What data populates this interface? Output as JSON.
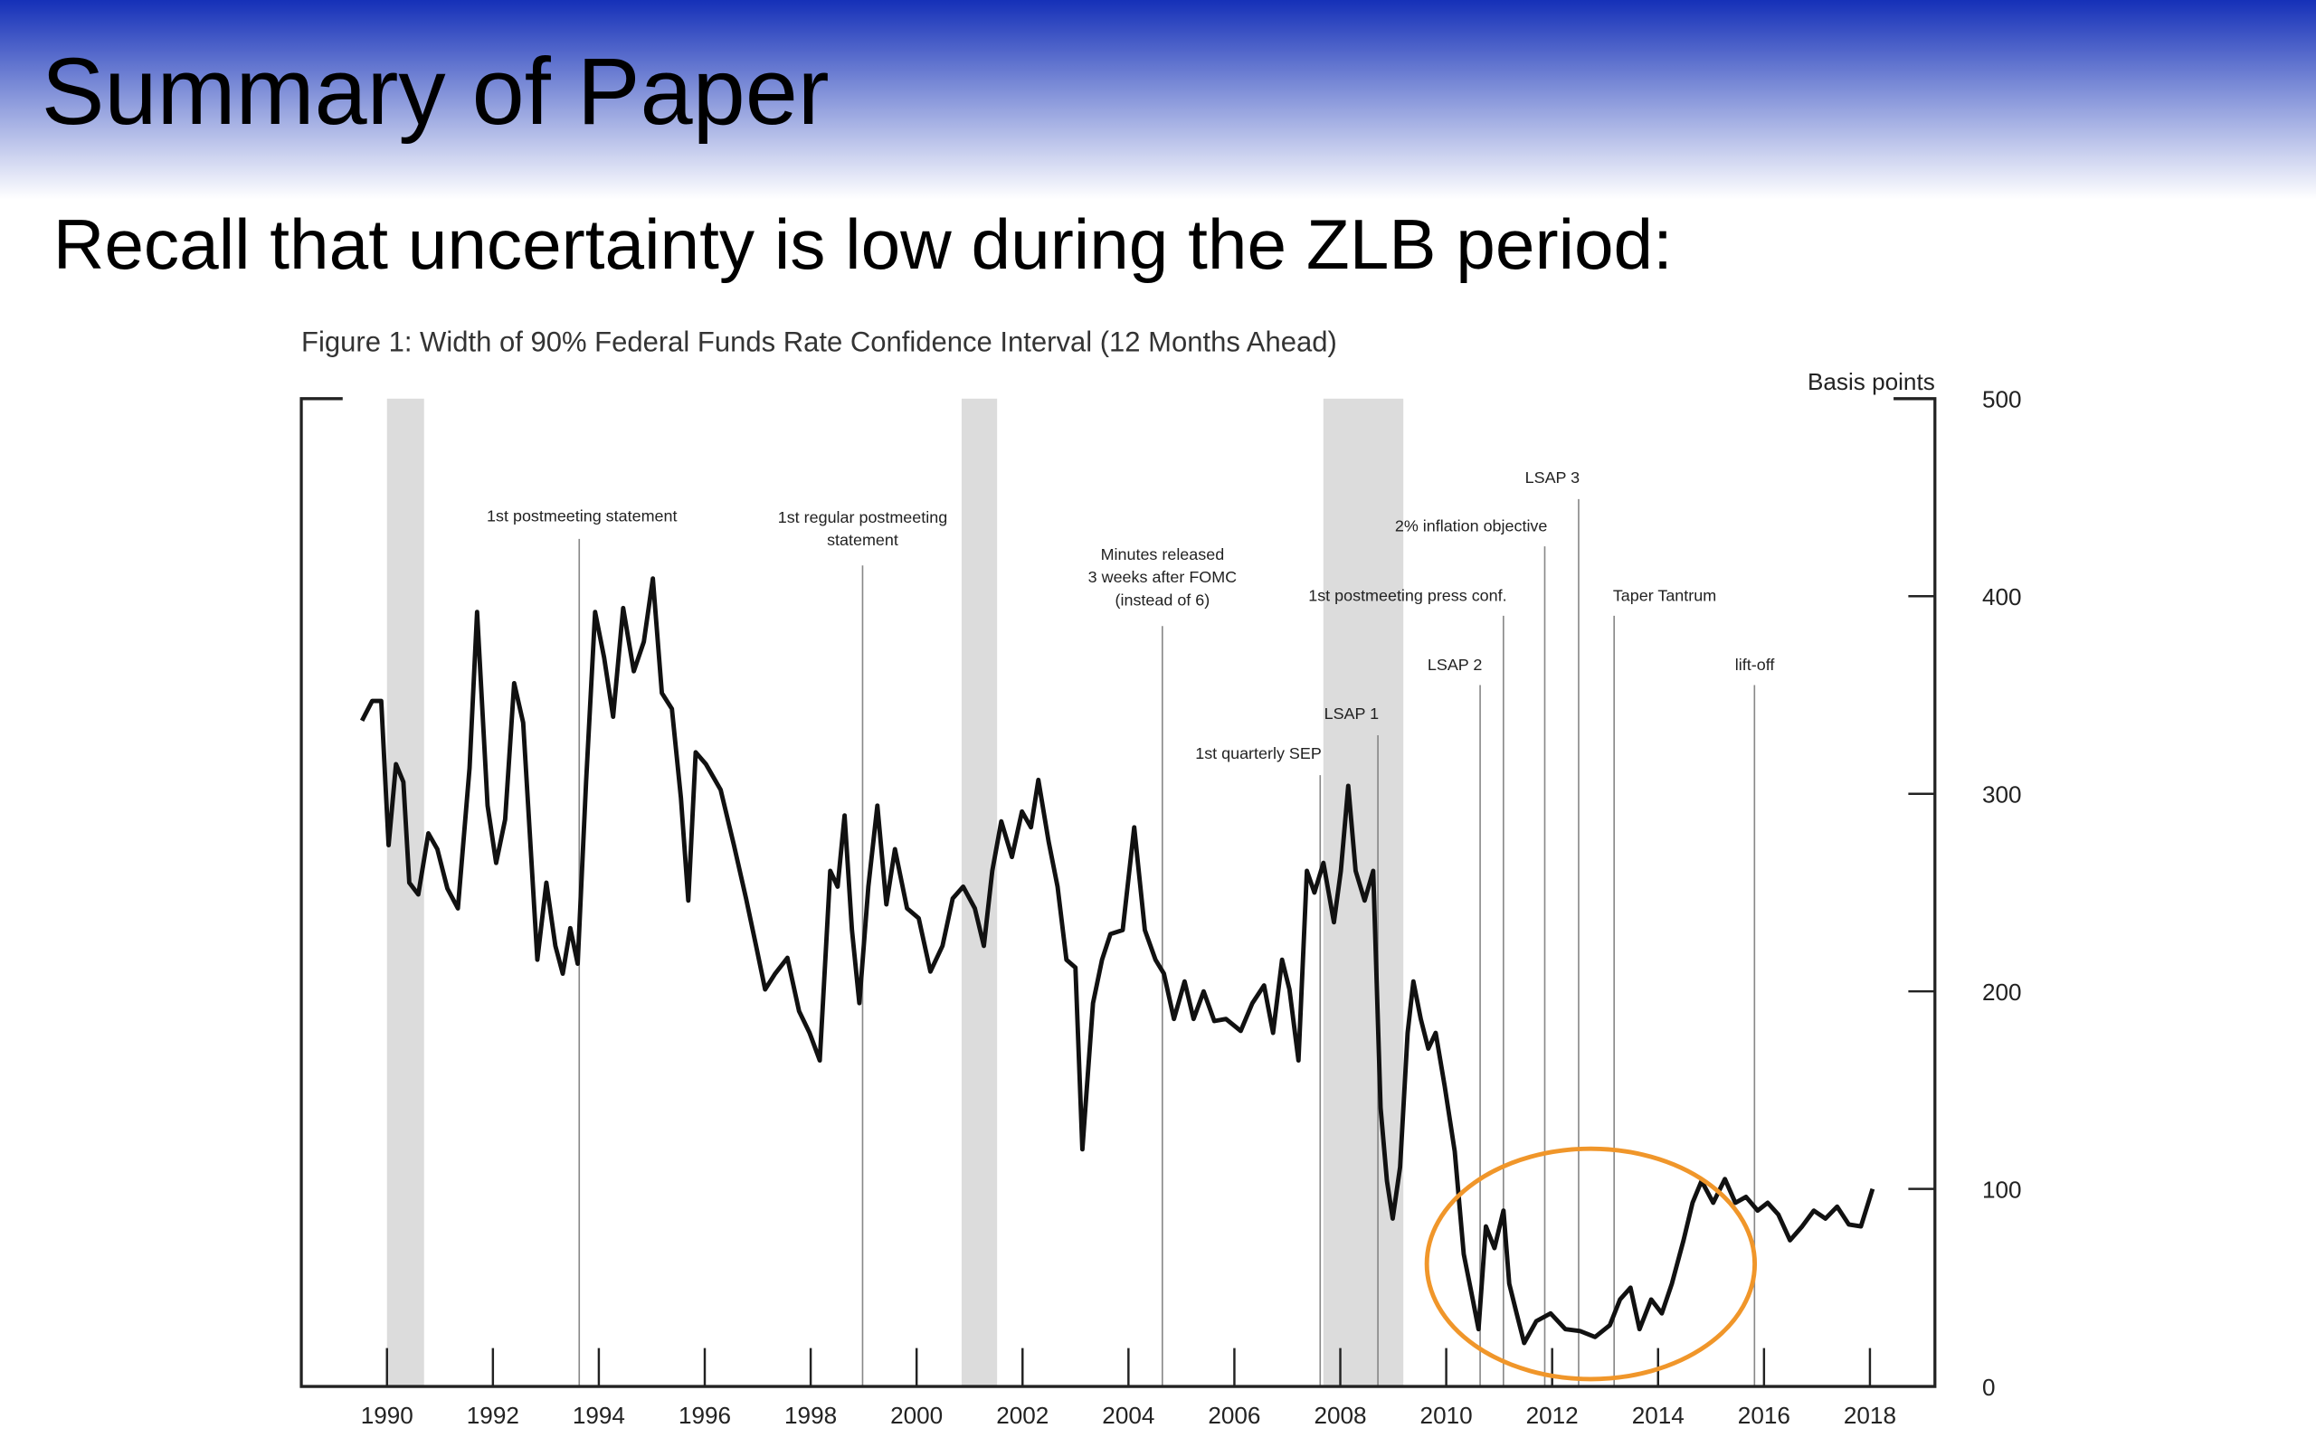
{
  "slide": {
    "title": "Summary of Paper",
    "subtitle": "Recall that uncertainty is low during the ZLB period:"
  },
  "chart_data": {
    "type": "line",
    "title": "Figure 1: Width of 90% Federal Funds Rate Confidence Interval (12 Months Ahead)",
    "y_label": "Basis points",
    "color": "#111111",
    "x": [
      1989.53,
      1989.72,
      1989.89,
      1990.03,
      1990.17,
      1990.31,
      1990.42,
      1990.59,
      1990.78,
      1990.95,
      1991.14,
      1991.34,
      1991.56,
      1991.7,
      1991.9,
      1992.06,
      1992.23,
      1992.4,
      1992.57,
      1992.84,
      1993.01,
      1993.18,
      1993.32,
      1993.46,
      1993.6,
      1993.76,
      1993.93,
      1994.1,
      1994.27,
      1994.46,
      1994.66,
      1994.85,
      1995.02,
      1995.19,
      1995.38,
      1995.55,
      1995.69,
      1995.83,
      1996.02,
      1996.3,
      1996.55,
      1996.78,
      1996.97,
      1997.14,
      1997.33,
      1997.56,
      1997.78,
      1997.98,
      1998.17,
      1998.37,
      1998.51,
      1998.64,
      1998.78,
      1998.92,
      1999.09,
      1999.26,
      1999.43,
      1999.59,
      1999.82,
      2000.04,
      2000.26,
      2000.49,
      2000.68,
      2000.88,
      2001.1,
      2001.27,
      2001.43,
      2001.6,
      2001.8,
      2001.99,
      2002.16,
      2002.3,
      2002.49,
      2002.66,
      2002.83,
      2003.0,
      2003.13,
      2003.33,
      2003.5,
      2003.66,
      2003.89,
      2004.11,
      2004.31,
      2004.51,
      2004.67,
      2004.86,
      2005.06,
      2005.23,
      2005.42,
      2005.62,
      2005.84,
      2006.12,
      2006.34,
      2006.56,
      2006.73,
      2006.9,
      2007.04,
      2007.21,
      2007.37,
      2007.51,
      2007.68,
      2007.88,
      2008.01,
      2008.15,
      2008.29,
      2008.46,
      2008.62,
      2008.76,
      2008.88,
      2008.99,
      2009.13,
      2009.27,
      2009.38,
      2009.52,
      2009.66,
      2009.8,
      2009.97,
      2010.16,
      2010.33,
      2010.5,
      2010.61,
      2010.75,
      2010.91,
      2011.08,
      2011.19,
      2011.33,
      2011.47,
      2011.7,
      2011.97,
      2012.25,
      2012.53,
      2012.81,
      2013.09,
      2013.28,
      2013.48,
      2013.65,
      2013.87,
      2014.07,
      2014.26,
      2014.48,
      2014.65,
      2014.82,
      2015.04,
      2015.26,
      2015.46,
      2015.66,
      2015.88,
      2016.07,
      2016.27,
      2016.49,
      2016.72,
      2016.94,
      2017.16,
      2017.38,
      2017.6,
      2017.83,
      2018.05
    ],
    "values": [
      337,
      347,
      347,
      274,
      315,
      306,
      255,
      249,
      280,
      272,
      252,
      242,
      313,
      392,
      294,
      265,
      287,
      356,
      336,
      216,
      255,
      223,
      209,
      232,
      214,
      306,
      392,
      369,
      339,
      394,
      362,
      377,
      409,
      351,
      343,
      298,
      246,
      321,
      315,
      302,
      274,
      247,
      223,
      201,
      209,
      217,
      190,
      179,
      165,
      261,
      253,
      289,
      231,
      194,
      253,
      294,
      244,
      272,
      242,
      237,
      210,
      223,
      247,
      253,
      242,
      223,
      261,
      286,
      268,
      291,
      283,
      307,
      276,
      253,
      216,
      212,
      120,
      194,
      216,
      229,
      231,
      283,
      231,
      216,
      209,
      186,
      205,
      186,
      200,
      185,
      186,
      180,
      194,
      203,
      179,
      216,
      201,
      165,
      261,
      250,
      265,
      235,
      261,
      304,
      261,
      246,
      261,
      141,
      104,
      85,
      111,
      179,
      205,
      186,
      171,
      179,
      152,
      119,
      67,
      44,
      29,
      81,
      70,
      89,
      52,
      37,
      22,
      33,
      37,
      29,
      28,
      25,
      31,
      44,
      50,
      29,
      44,
      37,
      52,
      74,
      93,
      104,
      93,
      105,
      93,
      96,
      89,
      93,
      87,
      74,
      81,
      89,
      85,
      91,
      82,
      81,
      100
    ],
    "xlim": [
      1989.5,
      2018.35
    ],
    "ylim": [
      0,
      500
    ],
    "xticks": [
      1990,
      1992,
      1994,
      1996,
      1998,
      2000,
      2002,
      2004,
      2006,
      2008,
      2010,
      2012,
      2014,
      2016,
      2018
    ],
    "yticks": [
      0,
      100,
      200,
      300,
      400,
      500
    ],
    "shaded_ranges": [
      [
        1990.0,
        1990.7
      ],
      [
        2000.85,
        2001.52
      ],
      [
        2007.68,
        2009.19
      ]
    ],
    "annotations": [
      {
        "x": 1993.63,
        "lines": [
          "1st postmeeting statement"
        ]
      },
      {
        "x": 1998.98,
        "lines": [
          "1st regular postmeeting",
          "statement"
        ]
      },
      {
        "x": 2004.64,
        "lines": [
          "Minutes released",
          "3 weeks after FOMC",
          "(instead of 6)"
        ]
      },
      {
        "x": 2007.62,
        "lines": [
          "1st quarterly SEP"
        ]
      },
      {
        "x": 2008.71,
        "lines": [
          "LSAP 1"
        ]
      },
      {
        "x": 2010.64,
        "lines": [
          "LSAP 2"
        ]
      },
      {
        "x": 2011.08,
        "lines": [
          "1st postmeeting press conf."
        ]
      },
      {
        "x": 2011.86,
        "lines": [
          "2% inflation objective"
        ]
      },
      {
        "x": 2012.5,
        "lines": [
          "LSAP 3"
        ]
      },
      {
        "x": 2013.17,
        "lines": [
          "Taper Tantrum"
        ]
      },
      {
        "x": 2015.82,
        "lines": [
          "lift-off"
        ]
      }
    ]
  }
}
